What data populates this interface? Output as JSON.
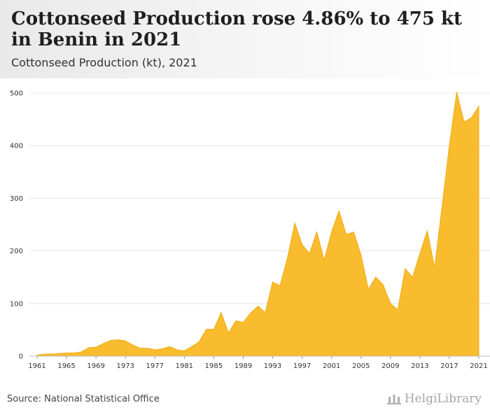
{
  "header": {
    "title": "Cottonseed Production rose 4.86% to 475 kt in Benin in 2021",
    "subtitle": "Cottonseed Production (kt), 2021"
  },
  "footer": {
    "source": "Source: National Statistical Office",
    "brand": "HelgiLibrary"
  },
  "colors": {
    "area_fill": "#f9bc2e",
    "area_stroke": "#f0ad0e",
    "grid": "#e6e6e6"
  },
  "chart_data": {
    "type": "area",
    "title": "Cottonseed Production rose 4.86% to 475 kt in Benin in 2021",
    "subtitle": "Cottonseed Production (kt), 2021",
    "xlabel": "",
    "ylabel": "",
    "ylim": [
      0,
      500
    ],
    "yticks": [
      0,
      100,
      200,
      300,
      400,
      500
    ],
    "xticks": [
      1961,
      1965,
      1969,
      1973,
      1977,
      1981,
      1985,
      1989,
      1993,
      1997,
      2001,
      2005,
      2009,
      2013,
      2017,
      2021
    ],
    "grid": true,
    "legend": "none",
    "x": [
      1961,
      1962,
      1963,
      1964,
      1965,
      1966,
      1967,
      1968,
      1969,
      1970,
      1971,
      1972,
      1973,
      1974,
      1975,
      1976,
      1977,
      1978,
      1979,
      1980,
      1981,
      1982,
      1983,
      1984,
      1985,
      1986,
      1987,
      1988,
      1989,
      1990,
      1991,
      1992,
      1993,
      1994,
      1995,
      1996,
      1997,
      1998,
      1999,
      2000,
      2001,
      2002,
      2003,
      2004,
      2005,
      2006,
      2007,
      2008,
      2009,
      2010,
      2011,
      2012,
      2013,
      2014,
      2015,
      2016,
      2017,
      2018,
      2019,
      2020,
      2021
    ],
    "series": [
      {
        "values": [
          2,
          4,
          4,
          5,
          6,
          6,
          8,
          16,
          17,
          24,
          30,
          31,
          29,
          21,
          15,
          15,
          12,
          14,
          18,
          12,
          10,
          18,
          27,
          51,
          51,
          83,
          44,
          67,
          64,
          82,
          95,
          83,
          141,
          134,
          186,
          253,
          212,
          195,
          236,
          182,
          236,
          276,
          231,
          236,
          192,
          127,
          150,
          136,
          100,
          88,
          166,
          150,
          195,
          238,
          168,
          283,
          400,
          502,
          445,
          453,
          475
        ]
      }
    ]
  }
}
